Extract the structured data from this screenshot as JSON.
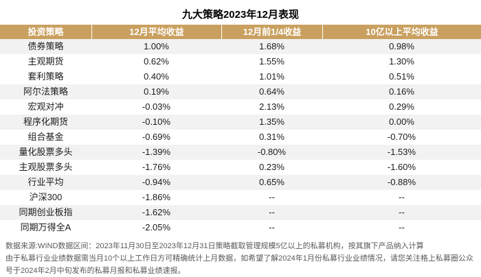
{
  "title": "九大策略2023年12月表现",
  "table": {
    "columns": [
      "投资策略",
      "12月平均收益",
      "12月前1/4收益",
      "10亿以上平均收益"
    ],
    "rows": [
      {
        "cells": [
          "债券策略",
          "1.00%",
          "1.68%",
          "0.98%"
        ],
        "shaded": true
      },
      {
        "cells": [
          "主观期货",
          "0.62%",
          "1.55%",
          "1.30%"
        ],
        "shaded": false
      },
      {
        "cells": [
          "套利策略",
          "0.40%",
          "1.01%",
          "0.51%"
        ],
        "shaded": false
      },
      {
        "cells": [
          "阿尔法策略",
          "0.19%",
          "0.64%",
          "0.16%"
        ],
        "shaded": true
      },
      {
        "cells": [
          "宏观对冲",
          "-0.03%",
          "2.13%",
          "0.29%"
        ],
        "shaded": false
      },
      {
        "cells": [
          "程序化期货",
          "-0.10%",
          "1.35%",
          "0.00%"
        ],
        "shaded": true
      },
      {
        "cells": [
          "组合基金",
          "-0.69%",
          "0.31%",
          "-0.70%"
        ],
        "shaded": false
      },
      {
        "cells": [
          "量化股票多头",
          "-1.39%",
          "-0.80%",
          "-1.53%"
        ],
        "shaded": true
      },
      {
        "cells": [
          "主观股票多头",
          "-1.76%",
          "0.23%",
          "-1.60%"
        ],
        "shaded": false
      },
      {
        "cells": [
          "行业平均",
          "-0.94%",
          "0.65%",
          "-0.88%"
        ],
        "shaded": true
      },
      {
        "cells": [
          "沪深300",
          "-1.86%",
          "--",
          "--"
        ],
        "shaded": false
      },
      {
        "cells": [
          "同期创业板指",
          "-1.62%",
          "--",
          "--"
        ],
        "shaded": true
      },
      {
        "cells": [
          "同期万得全A",
          "-2.05%",
          "--",
          "--"
        ],
        "shaded": false
      }
    ]
  },
  "chart_data": {
    "type": "table",
    "title": "九大策略2023年12月表现",
    "categories": [
      "债券策略",
      "主观期货",
      "套利策略",
      "阿尔法策略",
      "宏观对冲",
      "程序化期货",
      "组合基金",
      "量化股票多头",
      "主观股票多头",
      "行业平均",
      "沪深300",
      "同期创业板指",
      "同期万得全A"
    ],
    "series": [
      {
        "name": "12月平均收益",
        "values": [
          "1.00%",
          "0.62%",
          "0.40%",
          "0.19%",
          "-0.03%",
          "-0.10%",
          "-0.69%",
          "-1.39%",
          "-1.76%",
          "-0.94%",
          "-1.86%",
          "-1.62%",
          "-2.05%"
        ]
      },
      {
        "name": "12月前1/4收益",
        "values": [
          "1.68%",
          "1.55%",
          "1.01%",
          "0.64%",
          "2.13%",
          "1.35%",
          "0.31%",
          "-0.80%",
          "0.23%",
          "0.65%",
          "--",
          "--",
          "--"
        ]
      },
      {
        "name": "10亿以上平均收益",
        "values": [
          "0.98%",
          "1.30%",
          "0.51%",
          "0.16%",
          "0.29%",
          "0.00%",
          "-0.70%",
          "-1.53%",
          "-1.60%",
          "-0.88%",
          "--",
          "--",
          "--"
        ]
      }
    ]
  },
  "footer": {
    "line1": "数据来源:WIND数据区间：2023年11月30日至2023年12月31日策略截取管理规模5亿以上的私募机构，按其旗下产品纳入计算",
    "line2": "由于私募行业业绩数据需当月10个以上工作日方可精确统计上月数据，如希望了解2024年1月份私募行业业绩情况，请您关注格上私募圈公众号于2024年2月中旬发布的私募月报和私募业绩速报。"
  },
  "colors": {
    "header_bg": "#C9A05F",
    "header_text": "#FFFFFF",
    "row_shaded": "#F2F2F2",
    "body_text": "#1A1A1A",
    "footer_text": "#595959"
  }
}
